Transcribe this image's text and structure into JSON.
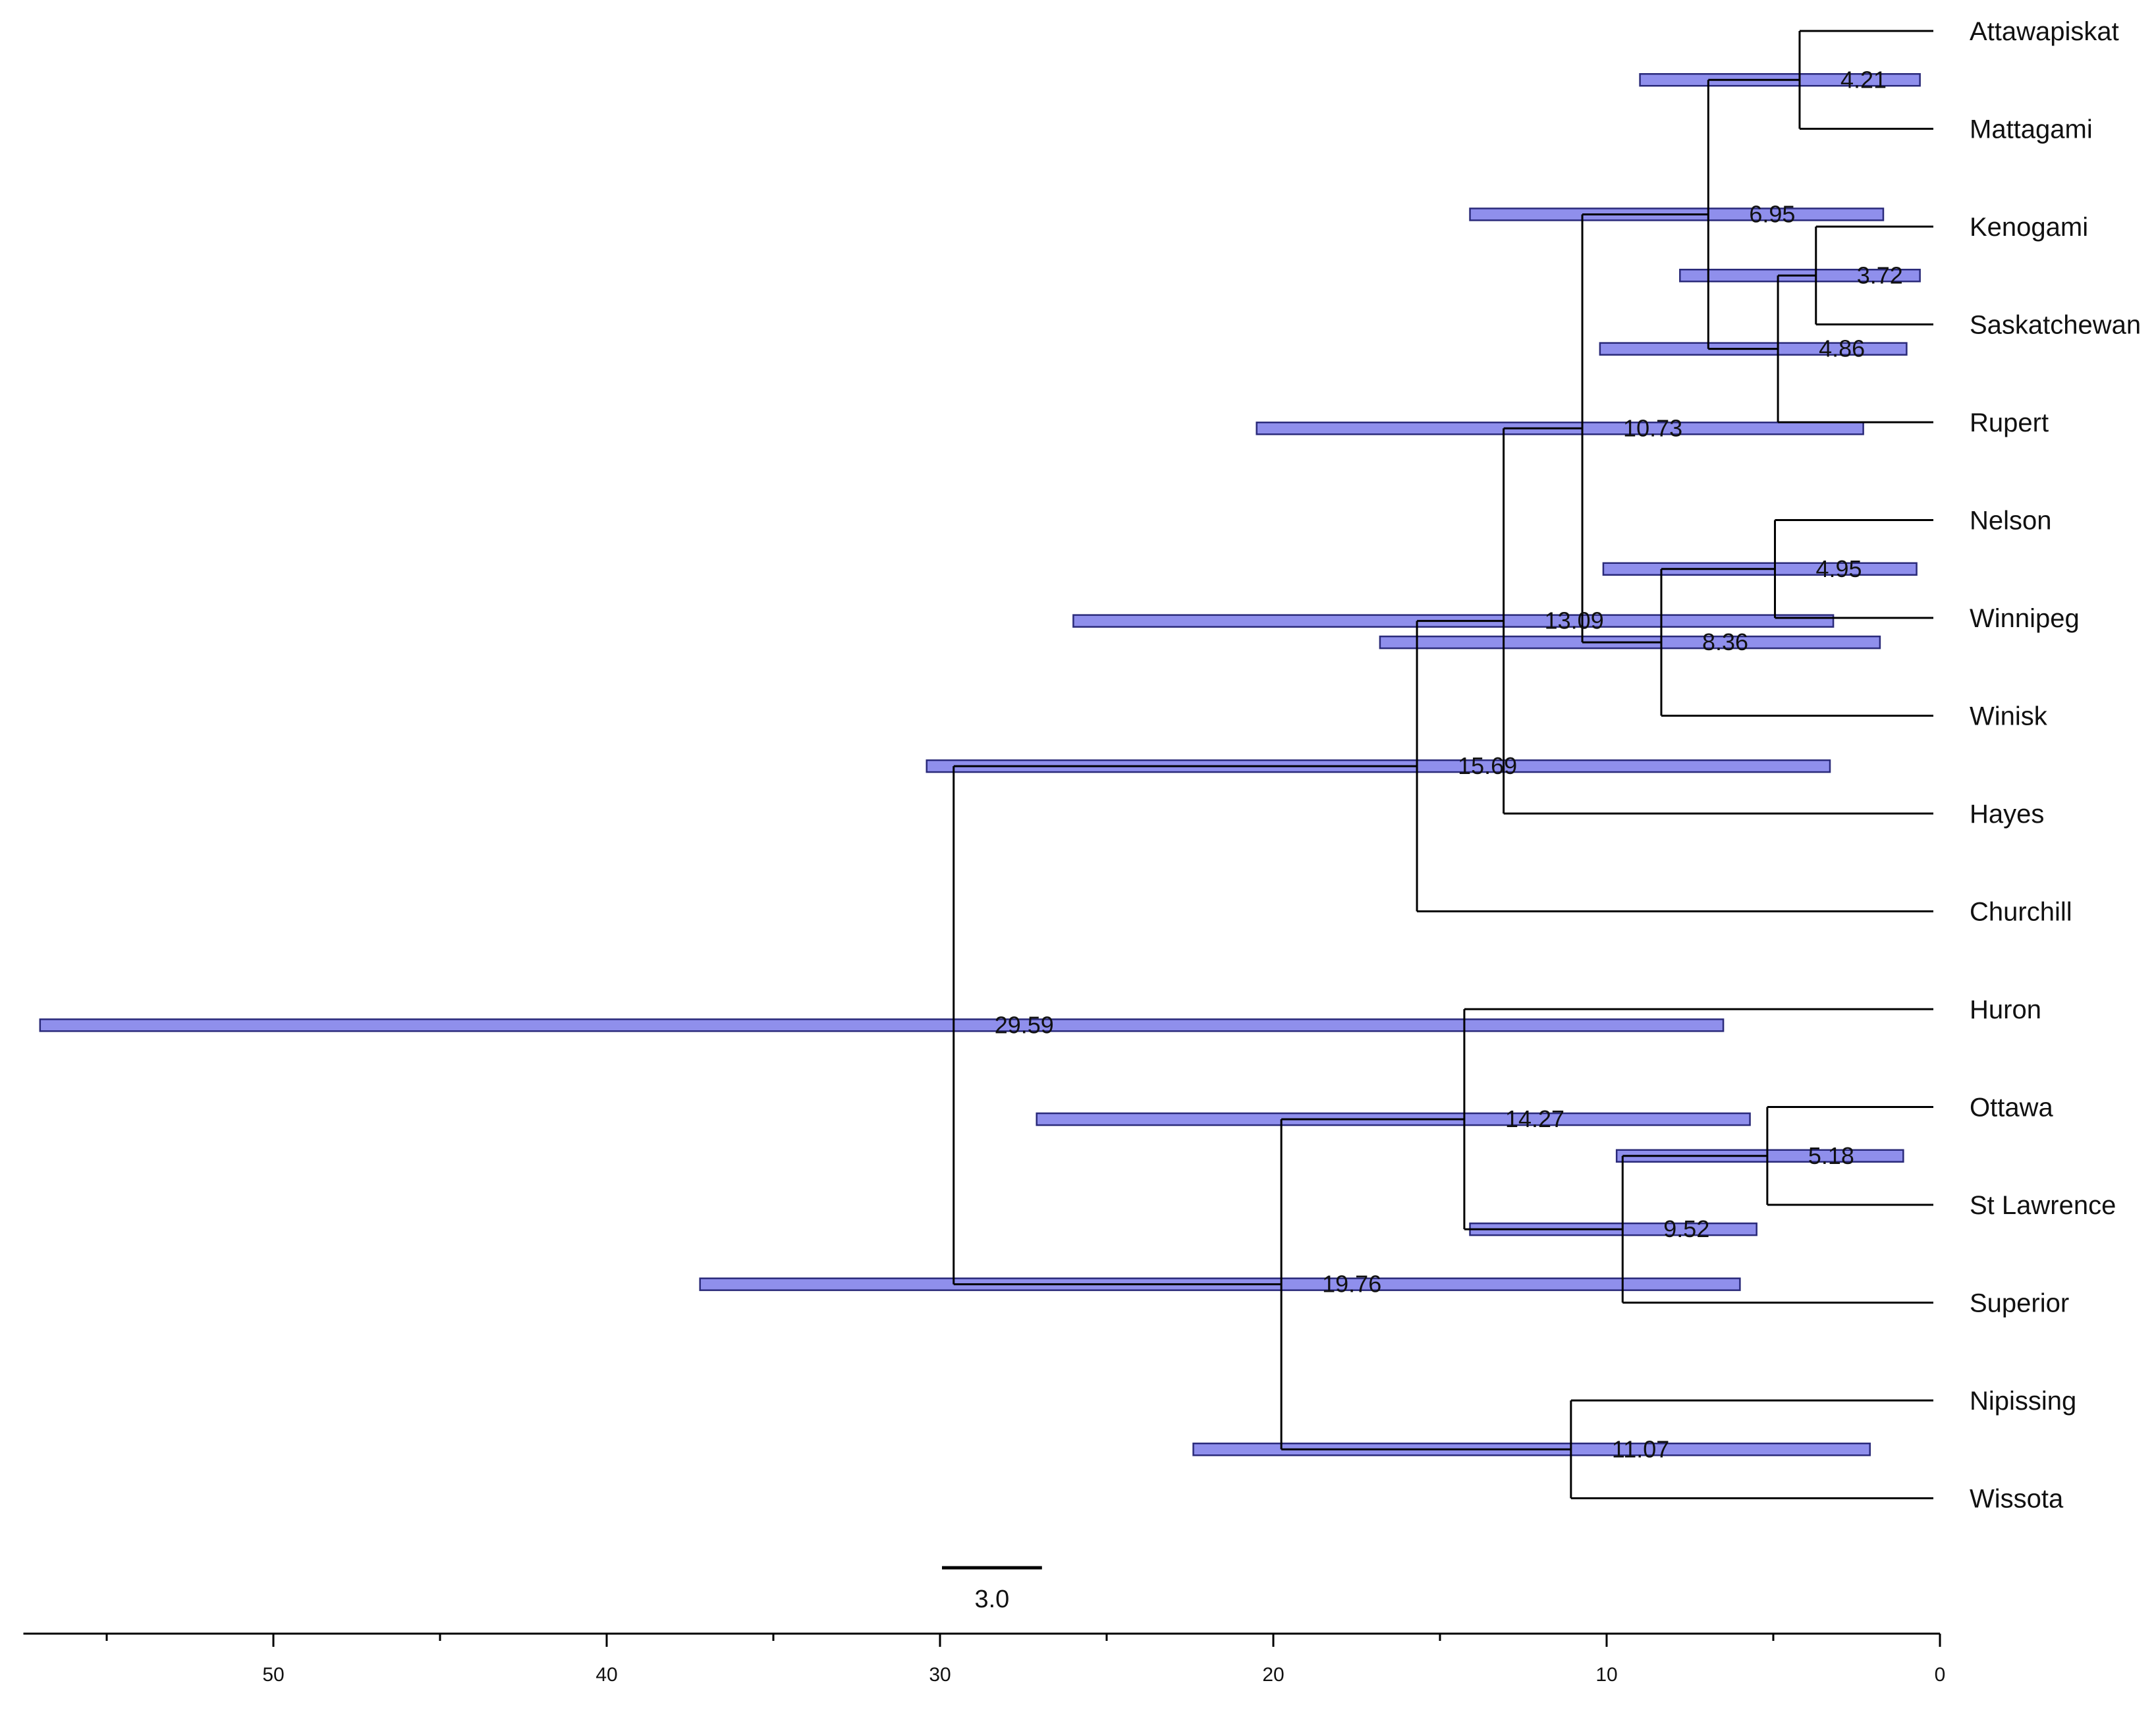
{
  "tree": {
    "tips": [
      {
        "id": "Attawapiskat",
        "label": "Attawapiskat"
      },
      {
        "id": "Mattagami",
        "label": "Mattagami"
      },
      {
        "id": "Kenogami",
        "label": "Kenogami"
      },
      {
        "id": "Saskatchewan",
        "label": "Saskatchewan"
      },
      {
        "id": "Rupert",
        "label": "Rupert"
      },
      {
        "id": "Nelson",
        "label": "Nelson"
      },
      {
        "id": "Winnipeg",
        "label": "Winnipeg"
      },
      {
        "id": "Winisk",
        "label": "Winisk"
      },
      {
        "id": "Hayes",
        "label": "Hayes"
      },
      {
        "id": "Churchill",
        "label": "Churchill"
      },
      {
        "id": "Huron",
        "label": "Huron"
      },
      {
        "id": "Ottawa",
        "label": "Ottawa"
      },
      {
        "id": "St Lawrence",
        "label": "St Lawrence"
      },
      {
        "id": "Superior",
        "label": "Superior"
      },
      {
        "id": "Nipissing",
        "label": "Nipissing"
      },
      {
        "id": "Wissota",
        "label": "Wissota"
      }
    ],
    "nodes": [
      {
        "id": "n1",
        "age": 4.21,
        "label": "4.21",
        "children": [
          "Attawapiskat",
          "Mattagami"
        ],
        "hpd": [
          0.6,
          9.0
        ]
      },
      {
        "id": "n2",
        "age": 3.72,
        "label": "3.72",
        "children": [
          "Kenogami",
          "Saskatchewan"
        ],
        "hpd": [
          0.6,
          7.8
        ]
      },
      {
        "id": "n3",
        "age": 4.86,
        "label": "4.86",
        "children": [
          "n2",
          "Rupert"
        ],
        "hpd": [
          1.0,
          10.2
        ]
      },
      {
        "id": "n4",
        "age": 6.95,
        "label": "6.95",
        "children": [
          "n1",
          "n3"
        ],
        "hpd": [
          1.7,
          14.1
        ]
      },
      {
        "id": "n5",
        "age": 4.95,
        "label": "4.95",
        "children": [
          "Nelson",
          "Winnipeg"
        ],
        "hpd": [
          0.7,
          10.1
        ]
      },
      {
        "id": "n6",
        "age": 8.36,
        "label": "8.36",
        "children": [
          "n5",
          "Winisk"
        ],
        "hpd": [
          1.8,
          16.8
        ]
      },
      {
        "id": "n7",
        "age": 10.73,
        "label": "10.73",
        "children": [
          "n4",
          "n6"
        ],
        "hpd": [
          2.3,
          20.5
        ]
      },
      {
        "id": "n8",
        "age": 13.09,
        "label": "13.09",
        "children": [
          "n7",
          "Hayes"
        ],
        "hpd": [
          3.2,
          26.0
        ]
      },
      {
        "id": "n9",
        "age": 15.69,
        "label": "15.69",
        "children": [
          "n8",
          "Churchill"
        ],
        "hpd": [
          3.3,
          30.4
        ]
      },
      {
        "id": "n10",
        "age": 5.18,
        "label": "5.18",
        "children": [
          "Ottawa",
          "St Lawrence"
        ],
        "hpd": [
          1.1,
          9.7
        ]
      },
      {
        "id": "n11",
        "age": 9.52,
        "label": "9.52",
        "children": [
          "n10",
          "Superior"
        ],
        "hpd": [
          5.5,
          14.1
        ]
      },
      {
        "id": "n12",
        "age": 14.27,
        "label": "14.27",
        "children": [
          "Huron",
          "n11"
        ],
        "hpd": [
          5.7,
          27.1
        ]
      },
      {
        "id": "n13",
        "age": 11.07,
        "label": "11.07",
        "children": [
          "Nipissing",
          "Wissota"
        ],
        "hpd": [
          2.1,
          22.4
        ]
      },
      {
        "id": "n14",
        "age": 19.76,
        "label": "19.76",
        "children": [
          "n12",
          "n13"
        ],
        "hpd": [
          6.0,
          37.2
        ]
      },
      {
        "id": "root",
        "age": 29.59,
        "label": "29.59",
        "children": [
          "n9",
          "n14"
        ],
        "hpd": [
          6.5,
          57.0
        ]
      }
    ]
  },
  "scale_bar": {
    "length": 3.0,
    "label": "3.0"
  },
  "axis": {
    "range": [
      57.5,
      0
    ],
    "major_ticks": [
      50,
      40,
      30,
      20,
      10,
      0
    ],
    "major_tick_labels": [
      "50",
      "40",
      "30",
      "20",
      "10",
      "0"
    ],
    "minor_ticks": [
      55,
      45,
      35,
      25,
      15,
      5
    ]
  },
  "colors": {
    "hpd_fill": "#8f8fec",
    "hpd_stroke": "#2a2a7a",
    "branch": "#000000"
  }
}
